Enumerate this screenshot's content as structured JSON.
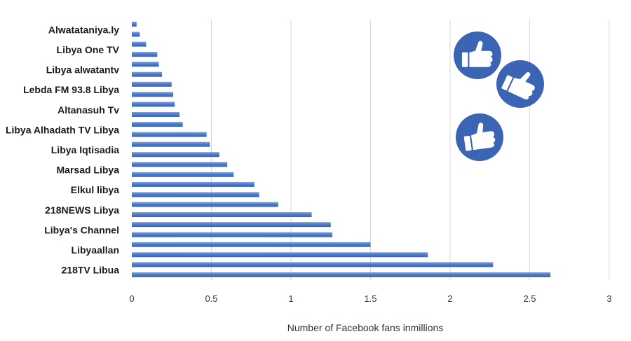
{
  "chart_data": {
    "type": "bar",
    "orientation": "horizontal",
    "title": "",
    "xlabel": "Number of Facebook fans inmillions",
    "ylabel": "",
    "xlim": [
      0,
      3
    ],
    "x_ticks": [
      0,
      0.5,
      1,
      1.5,
      2,
      2.5,
      3
    ],
    "x_tick_labels": [
      "0",
      "0.5",
      "1",
      "1.5",
      "2",
      "2.5",
      "3"
    ],
    "grid": "vertical",
    "legend": "none",
    "bar_color": "#4a78c8",
    "icon_color": "#3b64b5",
    "categories": [
      "Alwatataniya.ly",
      "Libya One TV",
      "Libya alwatantv",
      "Lebda FM 93.8 Libya",
      "Altanasuh Tv",
      "Libya Alhadath TV Libya",
      "Libya Iqtisadia",
      "Marsad Libya",
      "Elkul libya",
      "218NEWS Libya",
      "Libya's Channel",
      "Libyaallan",
      "218TV Libua"
    ],
    "values_per_category": [
      [
        0.03,
        0.05
      ],
      [
        0.09,
        0.16
      ],
      [
        0.17,
        0.19
      ],
      [
        0.25,
        0.26
      ],
      [
        0.27,
        0.3
      ],
      [
        0.32,
        0.47
      ],
      [
        0.49,
        0.55
      ],
      [
        0.6,
        0.64
      ],
      [
        0.77,
        0.8
      ],
      [
        0.92,
        1.13
      ],
      [
        1.25,
        1.26
      ],
      [
        1.5,
        1.86
      ],
      [
        2.27,
        2.63
      ]
    ],
    "decorations": [
      "thumbs-up-icon",
      "thumbs-up-icon",
      "thumbs-up-icon"
    ]
  }
}
